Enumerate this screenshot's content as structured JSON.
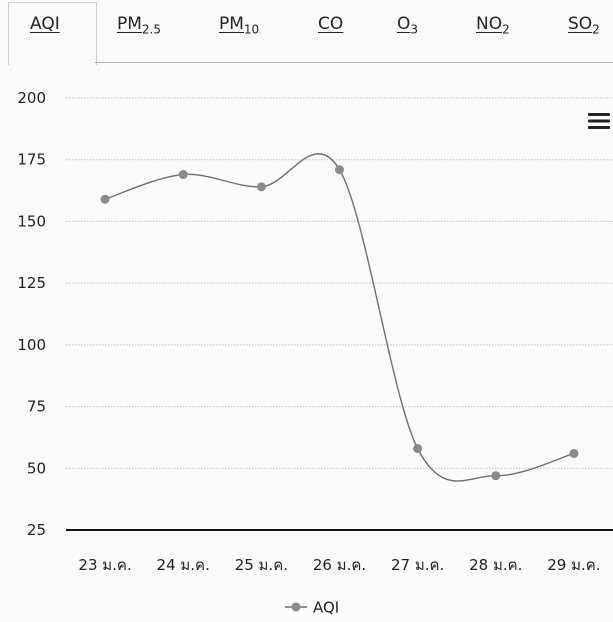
{
  "tabs": [
    {
      "main": "AQI",
      "sub": "",
      "active": true
    },
    {
      "main": "PM",
      "sub": "2.5",
      "active": false
    },
    {
      "main": "PM",
      "sub": "10",
      "active": false
    },
    {
      "main": "CO",
      "sub": "",
      "active": false
    },
    {
      "main": "O",
      "sub": "3",
      "active": false
    },
    {
      "main": "NO",
      "sub": "2",
      "active": false
    },
    {
      "main": "SO",
      "sub": "2",
      "active": false
    }
  ],
  "chart_data": {
    "type": "line",
    "categories": [
      "23 ม.ค.",
      "24 ม.ค.",
      "25 ม.ค.",
      "26 ม.ค.",
      "27 ม.ค.",
      "28 ม.ค.",
      "29 ม.ค."
    ],
    "series": [
      {
        "name": "AQI",
        "values": [
          159,
          169,
          164,
          171,
          58,
          47,
          56
        ]
      }
    ],
    "yticks": [
      25,
      50,
      75,
      100,
      125,
      150,
      175,
      200
    ],
    "ylim": [
      25,
      200
    ],
    "grid": true,
    "legend": "bottom-center",
    "title": "",
    "xlabel": "",
    "ylabel": "",
    "colors": {
      "line": "#6e6e6e",
      "marker": "#8a8a8a",
      "grid": "#bdbdbd",
      "axis": "#111111"
    }
  },
  "menu_icon": "hamburger-menu-icon"
}
